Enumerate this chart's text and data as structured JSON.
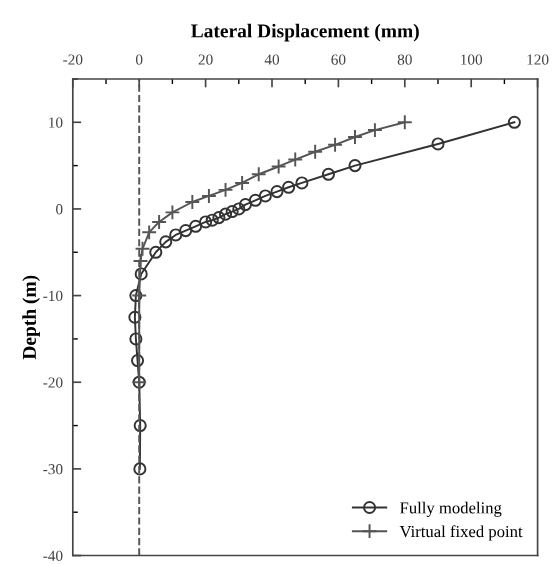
{
  "chart_data": {
    "type": "line",
    "xlabel": "Lateral Displacement (mm)",
    "ylabel": "Depth (m)",
    "xlim": [
      -20,
      120
    ],
    "xticks": [
      -20,
      0,
      20,
      40,
      60,
      80,
      100,
      120
    ],
    "ylim": [
      -40,
      15
    ],
    "yticks": [
      -40,
      -30,
      -20,
      -10,
      0,
      10
    ],
    "grid": false,
    "legend": "bottom right",
    "tick_labels": "xy",
    "ref_lines": [
      {
        "axis": "x",
        "value": 0,
        "line_style": "dashed",
        "color": "#555555"
      }
    ],
    "series": [
      {
        "name": "Fully modeling",
        "color": "#333333",
        "marker": "circle",
        "x": [
          113,
          90,
          65,
          57,
          49,
          45,
          41.5,
          38,
          35,
          32,
          30,
          28,
          26,
          24,
          22,
          20,
          17,
          14,
          11,
          8,
          5,
          0.6,
          -1,
          -1.3,
          -1,
          -0.5,
          0,
          0.3,
          0.2
        ],
        "values": [
          10,
          7.5,
          5,
          4,
          3,
          2.5,
          2,
          1.5,
          1,
          0.5,
          0,
          -0.3,
          -0.6,
          -1,
          -1.3,
          -1.5,
          -2,
          -2.5,
          -3,
          -3.8,
          -5,
          -7.5,
          -10,
          -12.5,
          -15,
          -17.5,
          -20,
          -25,
          -30
        ]
      },
      {
        "name": "Virtual fixed point",
        "color": "#555555",
        "marker": "cross",
        "x": [
          80,
          71,
          65,
          59,
          53,
          47,
          42,
          36,
          31,
          26,
          21,
          16,
          10,
          6,
          3,
          1,
          0.4,
          0,
          0
        ],
        "values": [
          10,
          9.1,
          8.3,
          7.4,
          6.6,
          5.7,
          4.9,
          4,
          3,
          2.2,
          1.5,
          0.8,
          -0.4,
          -1.5,
          -2.7,
          -4.6,
          -6,
          -10,
          -20
        ]
      }
    ]
  }
}
